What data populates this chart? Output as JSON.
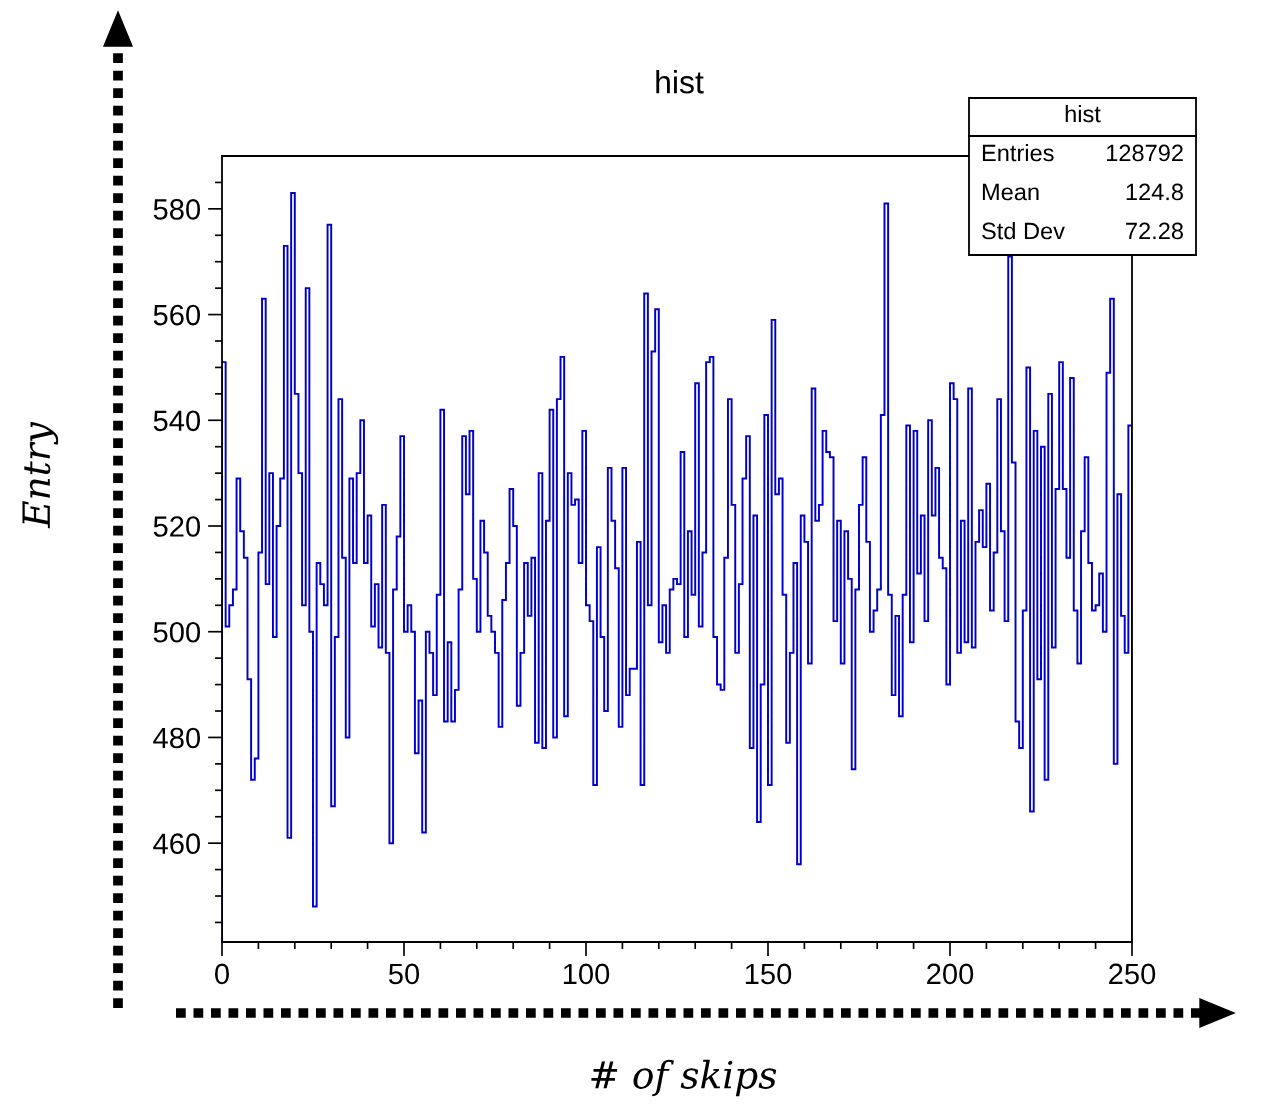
{
  "chart_data": {
    "type": "histogram",
    "title": "hist",
    "xlabel": "# of skips",
    "ylabel": "Entry",
    "color": "#0000cc",
    "bins": [
      0,
      1,
      2,
      3,
      4,
      5,
      6,
      7,
      8,
      9,
      10,
      11,
      12,
      13,
      14,
      15,
      16,
      17,
      18,
      19,
      20,
      21,
      22,
      23,
      24,
      25,
      26,
      27,
      28,
      29,
      30,
      31,
      32,
      33,
      34,
      35,
      36,
      37,
      38,
      39,
      40,
      41,
      42,
      43,
      44,
      45,
      46,
      47,
      48,
      49,
      50,
      51,
      52,
      53,
      54,
      55,
      56,
      57,
      58,
      59,
      60,
      61,
      62,
      63,
      64,
      65,
      66,
      67,
      68,
      69,
      70,
      71,
      72,
      73,
      74,
      75,
      76,
      77,
      78,
      79,
      80,
      81,
      82,
      83,
      84,
      85,
      86,
      87,
      88,
      89,
      90,
      91,
      92,
      93,
      94,
      95,
      96,
      97,
      98,
      99,
      100,
      101,
      102,
      103,
      104,
      105,
      106,
      107,
      108,
      109,
      110,
      111,
      112,
      113,
      114,
      115,
      116,
      117,
      118,
      119,
      120,
      121,
      122,
      123,
      124,
      125,
      126,
      127,
      128,
      129,
      130,
      131,
      132,
      133,
      134,
      135,
      136,
      137,
      138,
      139,
      140,
      141,
      142,
      143,
      144,
      145,
      146,
      147,
      148,
      149,
      150,
      151,
      152,
      153,
      154,
      155,
      156,
      157,
      158,
      159,
      160,
      161,
      162,
      163,
      164,
      165,
      166,
      167,
      168,
      169,
      170,
      171,
      172,
      173,
      174,
      175,
      176,
      177,
      178,
      179,
      180,
      181,
      182,
      183,
      184,
      185,
      186,
      187,
      188,
      189,
      190,
      191,
      192,
      193,
      194,
      195,
      196,
      197,
      198,
      199,
      200,
      201,
      202,
      203,
      204,
      205,
      206,
      207,
      208,
      209,
      210,
      211,
      212,
      213,
      214,
      215,
      216,
      217,
      218,
      219,
      220,
      221,
      222,
      223,
      224,
      225,
      226,
      227,
      228,
      229,
      230,
      231,
      232,
      233,
      234,
      235,
      236,
      237,
      238,
      239,
      240,
      241,
      242,
      243,
      244,
      245,
      246,
      247,
      248,
      249,
      250
    ],
    "values": [
      551,
      501,
      505,
      508,
      529,
      519,
      514,
      491,
      472,
      476,
      515,
      563,
      509,
      530,
      499,
      520,
      529,
      573,
      461,
      583,
      545,
      530,
      505,
      565,
      500,
      448,
      513,
      509,
      505,
      577,
      467,
      499,
      544,
      514,
      480,
      529,
      513,
      530,
      540,
      513,
      522,
      501,
      509,
      497,
      524,
      496,
      460,
      508,
      518,
      537,
      500,
      505,
      500,
      477,
      487,
      462,
      500,
      496,
      488,
      507,
      542,
      483,
      498,
      483,
      489,
      508,
      537,
      526,
      538,
      510,
      500,
      521,
      515,
      503,
      500,
      496,
      482,
      506,
      513,
      527,
      520,
      486,
      496,
      513,
      503,
      514,
      479,
      530,
      478,
      521,
      542,
      480,
      544,
      552,
      484,
      530,
      524,
      525,
      513,
      538,
      505,
      502,
      471,
      516,
      499,
      485,
      531,
      521,
      512,
      482,
      531,
      488,
      493,
      493,
      517,
      471,
      564,
      505,
      553,
      561,
      498,
      505,
      496,
      508,
      510,
      509,
      534,
      499,
      519,
      507,
      547,
      501,
      515,
      551,
      552,
      499,
      490,
      489,
      514,
      544,
      524,
      496,
      509,
      529,
      537,
      478,
      522,
      464,
      490,
      541,
      471,
      559,
      526,
      529,
      507,
      479,
      496,
      513,
      456,
      522,
      517,
      494,
      546,
      521,
      524,
      538,
      534,
      533,
      502,
      521,
      494,
      519,
      510,
      474,
      508,
      524,
      533,
      517,
      500,
      504,
      508,
      541,
      581,
      507,
      488,
      503,
      484,
      507,
      539,
      498,
      538,
      511,
      522,
      502,
      540,
      522,
      531,
      514,
      512,
      490,
      547,
      544,
      496,
      521,
      498,
      546,
      497,
      517,
      523,
      516,
      528,
      504,
      515,
      544,
      519,
      502,
      571,
      532,
      483,
      478,
      504,
      550,
      466,
      538,
      491,
      535,
      472,
      545,
      497,
      527,
      551,
      527,
      514,
      548,
      504,
      494,
      519,
      533,
      513,
      504,
      505,
      511,
      500,
      549,
      563,
      475,
      526,
      503,
      496,
      539
    ],
    "xlim": [
      0,
      250
    ],
    "xticks": [
      0,
      {
        "value": 10,
        "label": null
      },
      {
        "value": 20,
        "label": null
      },
      {
        "value": 30,
        "label": null
      },
      {
        "value": 40,
        "label": null
      },
      50,
      {
        "value": 60,
        "label": null
      },
      {
        "value": 70,
        "label": null
      },
      {
        "value": 80,
        "label": null
      },
      {
        "value": 90,
        "label": null
      },
      100,
      {
        "value": 110,
        "label": null
      },
      {
        "value": 120,
        "label": null
      },
      {
        "value": 130,
        "label": null
      },
      {
        "value": 140,
        "label": null
      },
      150,
      {
        "value": 160,
        "label": null
      },
      {
        "value": 170,
        "label": null
      },
      {
        "value": 180,
        "label": null
      },
      {
        "value": 190,
        "label": null
      },
      200,
      {
        "value": 210,
        "label": null
      },
      {
        "value": 220,
        "label": null
      },
      {
        "value": 230,
        "label": null
      },
      {
        "value": 240,
        "label": null
      },
      250
    ],
    "ylim": [
      441.3,
      590
    ],
    "yticks": [
      {
        "value": 445,
        "label": null
      },
      {
        "value": 450,
        "label": null
      },
      {
        "value": 455,
        "label": null
      },
      460,
      {
        "value": 465,
        "label": null
      },
      {
        "value": 470,
        "label": null
      },
      {
        "value": 475,
        "label": null
      },
      480,
      {
        "value": 485,
        "label": null
      },
      {
        "value": 490,
        "label": null
      },
      {
        "value": 495,
        "label": null
      },
      500,
      {
        "value": 505,
        "label": null
      },
      {
        "value": 510,
        "label": null
      },
      {
        "value": 515,
        "label": null
      },
      520,
      {
        "value": 525,
        "label": null
      },
      {
        "value": 530,
        "label": null
      },
      {
        "value": 535,
        "label": null
      },
      540,
      {
        "value": 545,
        "label": null
      },
      {
        "value": 550,
        "label": null
      },
      {
        "value": 555,
        "label": null
      },
      560,
      {
        "value": 565,
        "label": null
      },
      {
        "value": 570,
        "label": null
      },
      {
        "value": 575,
        "label": null
      },
      580,
      {
        "value": 585,
        "label": null
      }
    ],
    "grid": false,
    "annotations": [
      "hist",
      "Entries",
      "128792",
      "Mean",
      "124.8",
      "Std Dev",
      "72.28"
    ]
  }
}
